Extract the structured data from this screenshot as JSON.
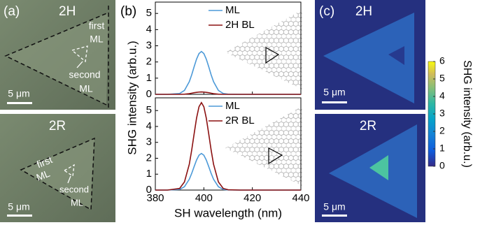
{
  "panel_a": {
    "label": "(a)",
    "top": {
      "stacking": "2H",
      "first": [
        "first",
        "ML"
      ],
      "second": [
        "second",
        "ML"
      ],
      "scale": "5 μm"
    },
    "bottom": {
      "stacking": "2R",
      "first": [
        "first",
        "ML"
      ],
      "second": [
        "second",
        "ML"
      ],
      "scale": "5 μm"
    }
  },
  "panel_b": {
    "label": "(b)"
  },
  "panel_c": {
    "label": "(c)",
    "top": {
      "stacking": "2H",
      "scale": "5 μm"
    },
    "bottom": {
      "stacking": "2R",
      "scale": "5 μm"
    }
  },
  "colorbar": {
    "label": "SHG intensity (arb.u.)",
    "lim": [
      0,
      6
    ],
    "ticks": [
      0,
      1,
      2,
      3,
      4,
      5,
      6
    ]
  },
  "chart_data": [
    {
      "type": "line",
      "x": [
        380,
        385,
        390,
        392,
        394,
        395,
        396,
        397,
        398,
        399,
        400,
        401,
        402,
        403,
        404,
        406,
        408,
        410,
        415,
        420,
        425,
        430,
        435,
        440
      ],
      "series": [
        {
          "name": "ML",
          "color": "#4d9ad8",
          "values": [
            0,
            0,
            0.05,
            0.24,
            0.78,
            1.21,
            1.71,
            2.18,
            2.52,
            2.65,
            2.52,
            2.18,
            1.71,
            1.21,
            0.78,
            0.24,
            0.05,
            0.01,
            0,
            0,
            0,
            0,
            0,
            0
          ]
        },
        {
          "name": "2H BL",
          "color": "#8b1010",
          "values": [
            0,
            0,
            0,
            0.01,
            0.04,
            0.07,
            0.1,
            0.12,
            0.14,
            0.15,
            0.14,
            0.12,
            0.1,
            0.07,
            0.04,
            0.01,
            0,
            0,
            0,
            0,
            0,
            0,
            0,
            0
          ]
        }
      ],
      "xlim": [
        380,
        440
      ],
      "xticks": [
        380,
        400,
        420,
        440
      ],
      "ylim": [
        0,
        5.7
      ],
      "yticks": [
        0,
        1,
        2,
        3,
        4,
        5
      ]
    },
    {
      "type": "line",
      "x": [
        380,
        385,
        390,
        392,
        394,
        395,
        396,
        397,
        398,
        399,
        400,
        401,
        402,
        403,
        404,
        406,
        408,
        410,
        415,
        420,
        425,
        430,
        435,
        440
      ],
      "series": [
        {
          "name": "ML",
          "color": "#4d9ad8",
          "values": [
            0,
            0,
            0.04,
            0.21,
            0.68,
            1.05,
            1.48,
            1.89,
            2.19,
            2.3,
            2.19,
            1.89,
            1.48,
            1.05,
            0.68,
            0.21,
            0.04,
            0.01,
            0,
            0,
            0,
            0,
            0,
            0
          ]
        },
        {
          "name": "2R BL",
          "color": "#8b1010",
          "values": [
            0,
            0,
            0.1,
            0.51,
            1.62,
            2.52,
            3.54,
            4.53,
            5.24,
            5.5,
            5.24,
            4.53,
            3.54,
            2.52,
            1.62,
            0.51,
            0.1,
            0.02,
            0,
            0,
            0,
            0,
            0,
            0
          ]
        }
      ],
      "xlim": [
        380,
        440
      ],
      "xticks": [
        380,
        400,
        420,
        440
      ],
      "ylim": [
        0,
        5.8
      ],
      "yticks": [
        0,
        1,
        2,
        3,
        4,
        5
      ],
      "xlabel": "SH wavelength (nm)",
      "ylabel": "SHG intensity (arb.u.)"
    }
  ]
}
